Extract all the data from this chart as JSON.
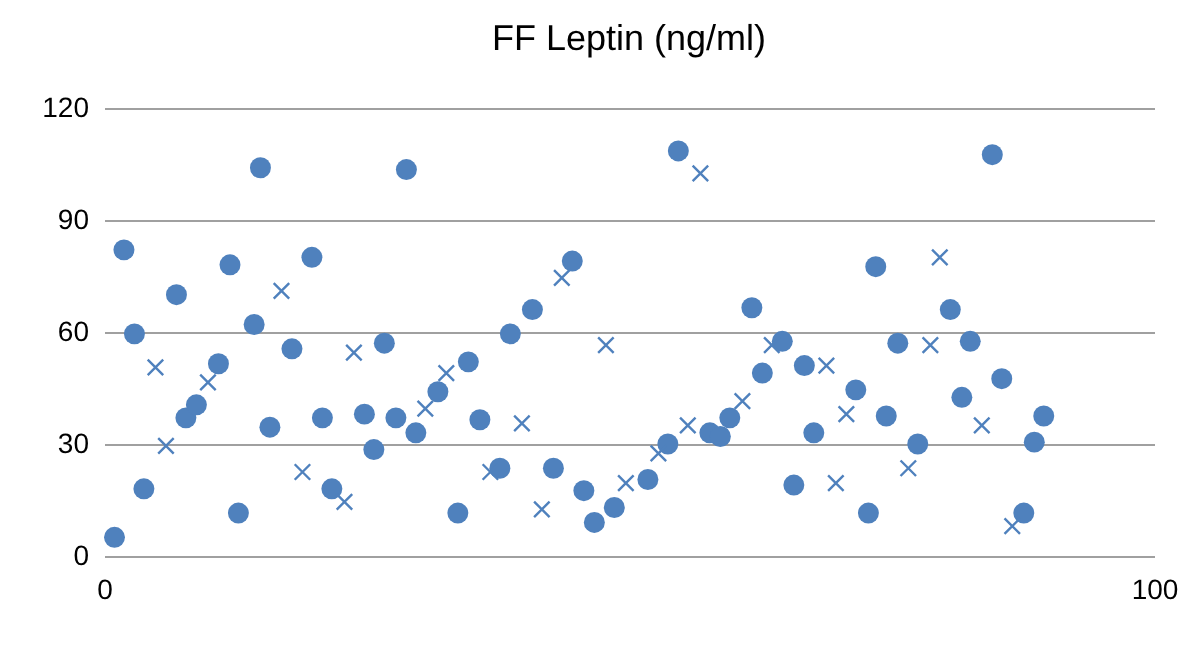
{
  "chart_data": {
    "type": "scatter",
    "title": "FF Leptin (ng/ml)",
    "xlim": [
      0,
      100
    ],
    "xticks": [
      0,
      100
    ],
    "ylim": [
      0,
      120
    ],
    "yticks": [
      0,
      30,
      60,
      90,
      120
    ],
    "grid": "y",
    "series": [
      {
        "color": "#4f81bd",
        "marker": "circle",
        "x": [
          1.0,
          1.9,
          2.9,
          3.8,
          6.9,
          7.8,
          8.8,
          10.9,
          12.0,
          12.8,
          14.3,
          14.9,
          15.8,
          17.9,
          19.8,
          20.8,
          21.7,
          24.8,
          25.7,
          26.7,
          27.8,
          28.8,
          29.7,
          31.8,
          33.7,
          34.7,
          35.8,
          37.7,
          38.7,
          40.8,
          42.8,
          44.6,
          45.7,
          46.7,
          48.6,
          51.8,
          53.7,
          54.7,
          57.7,
          58.7,
          59.6,
          61.7,
          62.7,
          64.6,
          65.7,
          66.7,
          67.6,
          71.6,
          72.8,
          73.5,
          74.5,
          75.6,
          77.5,
          80.6,
          81.7,
          82.5,
          84.6,
          85.5,
          87.6,
          88.6,
          89.5
        ],
        "values": [
          5,
          82,
          59.5,
          18,
          70,
          37,
          40.5,
          51.5,
          78,
          11.5,
          62,
          104,
          34.5,
          55.5,
          80,
          37,
          18,
          38,
          28.5,
          57,
          37,
          103.5,
          33,
          44,
          11.5,
          52,
          36.5,
          23.5,
          59.5,
          66,
          23.5,
          79,
          17.5,
          9,
          13,
          20.5,
          30,
          108.5,
          33,
          32,
          37,
          66.5,
          49,
          57.5,
          19,
          51,
          33,
          44.5,
          11.5,
          77.5,
          37.5,
          57,
          30,
          66,
          42.5,
          57.5,
          107.5,
          47.5,
          11.5,
          30.5,
          37.5
        ]
      },
      {
        "color": "#4f81bd",
        "marker": "cross",
        "x": [
          4.9,
          5.9,
          9.9,
          16.9,
          18.9,
          22.9,
          23.8,
          30.6,
          32.6,
          36.8,
          39.8,
          41.7,
          43.6,
          47.8,
          49.7,
          52.8,
          55.6,
          56.8,
          60.8,
          63.6,
          68.8,
          69.7,
          70.7,
          76.6,
          78.7,
          79.6,
          83.6,
          86.5
        ],
        "values": [
          50.5,
          29.5,
          46.5,
          71,
          22.5,
          14.5,
          54.5,
          39.5,
          49,
          22.5,
          35.5,
          12.5,
          74.5,
          56.5,
          19.5,
          27.5,
          35,
          102.5,
          41.5,
          56.5,
          51,
          19.5,
          38,
          23.5,
          56.5,
          80,
          35,
          8
        ]
      }
    ]
  }
}
